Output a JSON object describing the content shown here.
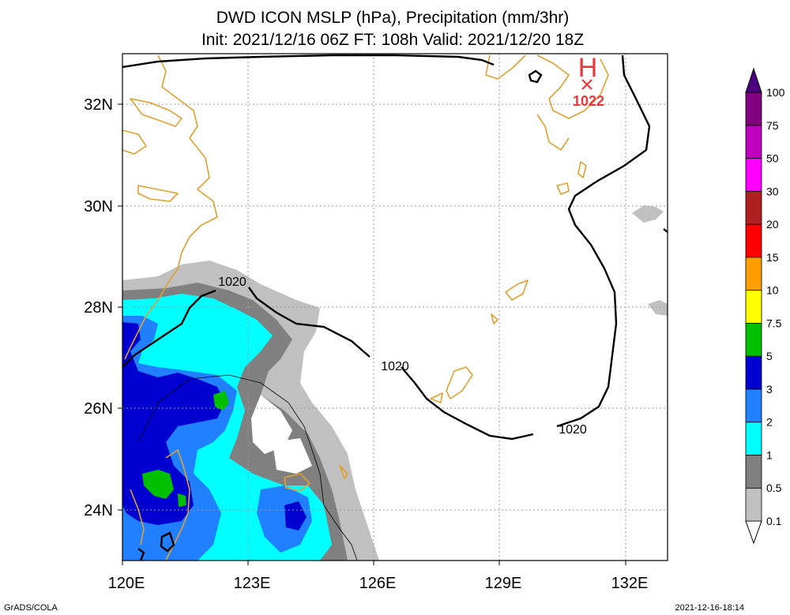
{
  "title": {
    "line1": "DWD ICON MSLP (hPa), Precipitation (mm/3hr)",
    "line2": "Init: 2021/12/16 06Z  FT: 108h  Valid: 2021/12/20 18Z"
  },
  "axes": {
    "lon_labels": [
      "120E",
      "123E",
      "126E",
      "129E",
      "132E"
    ],
    "lat_labels": [
      "32N",
      "30N",
      "28N",
      "26N",
      "24N"
    ],
    "lon_range": [
      120,
      133
    ],
    "lat_range": [
      23,
      33
    ]
  },
  "pressure": {
    "contour_value_label": "1020",
    "high_center": {
      "symbol": "H",
      "value": "1022",
      "lon": 131.0,
      "lat": 32.3
    }
  },
  "colorbar": {
    "levels": [
      "0.1",
      "0.5",
      "1",
      "2",
      "3",
      "5",
      "7.5",
      "10",
      "15",
      "20",
      "30",
      "50",
      "75",
      "100"
    ],
    "colors": [
      "#ffffff",
      "#c0c0c0",
      "#808080",
      "#00ffff",
      "#2080ff",
      "#0000d0",
      "#00c000",
      "#ffff00",
      "#ffa000",
      "#ff0000",
      "#b02020",
      "#ff00ff",
      "#c000c0",
      "#800080",
      "#4b0082"
    ]
  },
  "colors": {
    "coastline": "#e0a030",
    "grid": "#999999",
    "high_marker": "#e8383d"
  },
  "footer": {
    "left": "GrADS/COLA",
    "right": "2021-12-16-18:14"
  }
}
